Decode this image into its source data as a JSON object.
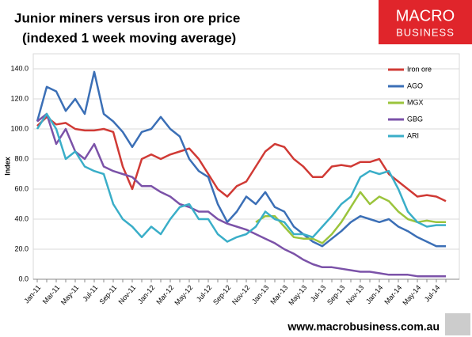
{
  "chart_data": {
    "type": "line",
    "title": "Junior miners versus iron ore price",
    "subtitle": "(indexed 1 week moving average)",
    "y_label": "Index",
    "categories": [
      "Jan-11",
      null,
      "Mar-11",
      null,
      "May-11",
      null,
      "Jul-11",
      null,
      "Sep-11",
      null,
      "Nov-11",
      null,
      "Jan-12",
      null,
      "Mar-12",
      null,
      "May-12",
      null,
      "Jul-12",
      null,
      "Sep-12",
      null,
      "Nov-12",
      null,
      "Jan-13",
      null,
      "Mar-13",
      null,
      "May-13",
      null,
      "Jul-13",
      null,
      "Sep-13",
      null,
      "Nov-13",
      null,
      "Jan-14",
      null,
      "Mar-14",
      null,
      "May-14",
      null,
      "Jul-14",
      null
    ],
    "series": [
      {
        "name": "Iron ore",
        "color": "#d03a35",
        "values": [
          102,
          108,
          103,
          104,
          100,
          99,
          99,
          100,
          98,
          75,
          60,
          80,
          83,
          80,
          83,
          85,
          87,
          80,
          70,
          60,
          55,
          62,
          65,
          75,
          85,
          90,
          88,
          80,
          75,
          68,
          68,
          75,
          76,
          75,
          78,
          78,
          80,
          70,
          65,
          60,
          55,
          56,
          55,
          52
        ]
      },
      {
        "name": "AGO",
        "color": "#3b6fb6",
        "values": [
          105,
          128,
          125,
          112,
          120,
          110,
          138,
          110,
          105,
          98,
          88,
          98,
          100,
          108,
          100,
          95,
          80,
          72,
          68,
          50,
          38,
          45,
          55,
          50,
          58,
          48,
          45,
          35,
          30,
          25,
          22,
          27,
          32,
          38,
          42,
          40,
          38,
          40,
          35,
          32,
          28,
          25,
          22,
          22
        ]
      },
      {
        "name": "MGX",
        "color": "#9bc43c",
        "values": [
          null,
          null,
          null,
          null,
          null,
          null,
          null,
          null,
          null,
          null,
          null,
          null,
          null,
          null,
          null,
          null,
          null,
          null,
          null,
          null,
          null,
          null,
          null,
          38,
          42,
          42,
          35,
          28,
          27,
          27,
          24,
          30,
          38,
          48,
          58,
          50,
          55,
          52,
          45,
          40,
          38,
          39,
          38,
          38
        ]
      },
      {
        "name": "GBG",
        "color": "#7b52a8",
        "values": [
          105,
          110,
          90,
          100,
          85,
          80,
          90,
          75,
          72,
          70,
          68,
          62,
          62,
          58,
          55,
          50,
          48,
          45,
          45,
          40,
          37,
          35,
          33,
          30,
          27,
          24,
          20,
          17,
          13,
          10,
          8,
          8,
          7,
          6,
          5,
          5,
          4,
          3,
          3,
          3,
          2,
          2,
          2,
          2
        ]
      },
      {
        "name": "ARI",
        "color": "#3aaec8",
        "values": [
          100,
          110,
          100,
          80,
          85,
          75,
          72,
          70,
          50,
          40,
          35,
          28,
          35,
          30,
          40,
          48,
          50,
          40,
          40,
          30,
          25,
          28,
          30,
          35,
          45,
          40,
          38,
          30,
          30,
          28,
          35,
          42,
          50,
          55,
          68,
          72,
          70,
          72,
          60,
          45,
          38,
          35,
          36,
          36
        ]
      }
    ],
    "ylim": [
      0,
      150
    ],
    "yticks": [
      {
        "value": 0,
        "label": "0.0"
      },
      {
        "value": 20,
        "label": "20.0"
      },
      {
        "value": 40,
        "label": "40.0"
      },
      {
        "value": 60,
        "label": "60.0"
      },
      {
        "value": 80,
        "label": "80.0"
      },
      {
        "value": 100,
        "label": "100.0"
      },
      {
        "value": 120,
        "label": "120.0"
      },
      {
        "value": 140,
        "label": "140.0"
      }
    ],
    "grid": true,
    "legend": "top-right"
  },
  "logo": {
    "line1": "MACRO",
    "line2": "BUSINESS"
  },
  "footer": "www.macrobusiness.com.au"
}
